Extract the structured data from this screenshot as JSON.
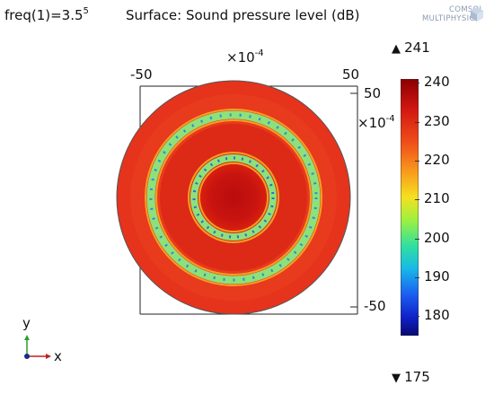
{
  "header": {
    "param_prefix": "freq(1)=3.5",
    "param_exponent": "5",
    "plot_title": "Surface: Sound pressure level (dB)"
  },
  "logo": {
    "line1": "COMSOL",
    "line2": "MULTIPHYSICS"
  },
  "axes": {
    "top_multiplier": "×10",
    "top_multiplier_exp": "-4",
    "right_multiplier": "×10",
    "right_multiplier_exp": "-4",
    "top_left_tick": "-50",
    "top_right_tick": "50",
    "right_top_tick": "50",
    "right_bottom_tick": "-50"
  },
  "colorbar": {
    "max_indicator": "241",
    "min_indicator": "175",
    "ticks": [
      "240",
      "230",
      "220",
      "210",
      "200",
      "190",
      "180"
    ],
    "range": [
      175,
      241
    ],
    "colormap": "rainbow"
  },
  "triad": {
    "y_label": "y",
    "x_label": "x"
  },
  "colors": {
    "outer_field": "#e8321a",
    "inner_field": "#c81410",
    "ring": "#7de08a"
  }
}
